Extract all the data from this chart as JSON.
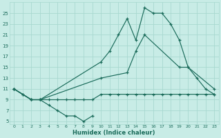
{
  "xlabel": "Humidex (Indice chaleur)",
  "bg_color": "#c8ece6",
  "grid_color": "#a8d8d0",
  "line_color": "#1a6b5a",
  "xlim": [
    -0.5,
    23.5
  ],
  "ylim": [
    4.5,
    27
  ],
  "xticks": [
    0,
    1,
    2,
    3,
    4,
    5,
    6,
    7,
    8,
    9,
    10,
    11,
    12,
    13,
    14,
    15,
    16,
    17,
    18,
    19,
    20,
    21,
    22,
    23
  ],
  "yticks": [
    5,
    7,
    9,
    11,
    13,
    15,
    17,
    19,
    21,
    23,
    25
  ],
  "lines": [
    {
      "x": [
        0,
        1,
        2,
        3,
        4,
        5,
        6,
        7,
        8,
        9
      ],
      "y": [
        11,
        10,
        9,
        9,
        8,
        7,
        6,
        6,
        5,
        6
      ]
    },
    {
      "x": [
        0,
        2,
        3,
        10,
        11,
        12,
        13,
        14,
        15,
        16,
        17,
        18,
        19,
        20,
        21,
        22,
        23
      ],
      "y": [
        11,
        9,
        9,
        16,
        18,
        21,
        24,
        20,
        26,
        25,
        25,
        23,
        20,
        15,
        13,
        11,
        10
      ]
    },
    {
      "x": [
        0,
        2,
        3,
        10,
        13,
        14,
        15,
        19,
        20,
        23
      ],
      "y": [
        11,
        9,
        9,
        13,
        14,
        18,
        21,
        15,
        15,
        11
      ]
    },
    {
      "x": [
        0,
        1,
        2,
        3,
        4,
        5,
        6,
        7,
        8,
        9,
        10,
        11,
        12,
        13,
        14,
        15,
        16,
        17,
        18,
        19,
        20,
        21,
        22,
        23
      ],
      "y": [
        11,
        10,
        9,
        9,
        9,
        9,
        9,
        9,
        9,
        9,
        10,
        10,
        10,
        10,
        10,
        10,
        10,
        10,
        10,
        10,
        10,
        10,
        10,
        10
      ]
    }
  ]
}
